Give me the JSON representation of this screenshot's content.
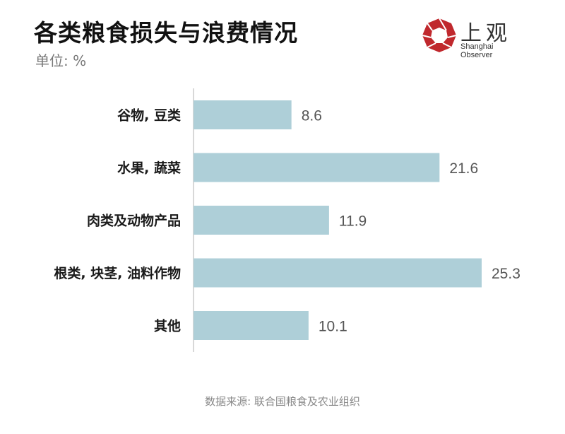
{
  "title": "各类粮食损失与浪费情况",
  "unit": "单位: %",
  "logo": {
    "cn": "上观",
    "en": "Shanghai Observer"
  },
  "source": "数据来源: 联合国粮食及农业组织",
  "colors": {
    "bar": "#aecfd8",
    "logo_red": "#c0282d",
    "axis": "#cccccc"
  },
  "chart_data": {
    "type": "bar",
    "orientation": "horizontal",
    "categories": [
      "谷物, 豆类",
      "水果, 蔬菜",
      "肉类及动物产品",
      "根类, 块茎, 油料作物",
      "其他"
    ],
    "values": [
      8.6,
      21.6,
      11.9,
      25.3,
      10.1
    ],
    "value_labels": [
      "8.6",
      "21.6",
      "11.9",
      "25.3",
      "10.1"
    ],
    "title": "各类粮食损失与浪费情况",
    "xlabel": "",
    "ylabel": "",
    "xlim": [
      0,
      25.3
    ],
    "grid": false,
    "legend": "none"
  }
}
